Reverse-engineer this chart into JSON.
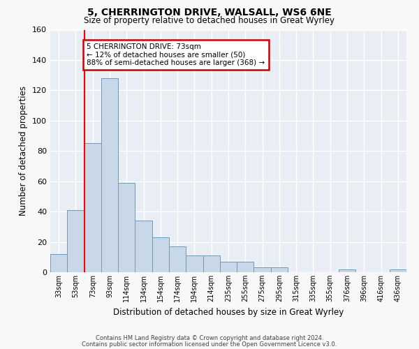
{
  "title1": "5, CHERRINGTON DRIVE, WALSALL, WS6 6NE",
  "title2": "Size of property relative to detached houses in Great Wyrley",
  "xlabel": "Distribution of detached houses by size in Great Wyrley",
  "ylabel": "Number of detached properties",
  "categories": [
    "33sqm",
    "53sqm",
    "73sqm",
    "93sqm",
    "114sqm",
    "134sqm",
    "154sqm",
    "174sqm",
    "194sqm",
    "214sqm",
    "235sqm",
    "255sqm",
    "275sqm",
    "295sqm",
    "315sqm",
    "335sqm",
    "355sqm",
    "376sqm",
    "396sqm",
    "416sqm",
    "436sqm"
  ],
  "values": [
    12,
    41,
    85,
    128,
    59,
    34,
    23,
    17,
    11,
    11,
    7,
    7,
    3,
    3,
    0,
    0,
    0,
    2,
    0,
    0,
    2
  ],
  "bar_color": "#c8d8e8",
  "bar_edge_color": "#7098b8",
  "red_line_x": 2,
  "annotation_line1": "5 CHERRINGTON DRIVE: 73sqm",
  "annotation_line2": "← 12% of detached houses are smaller (50)",
  "annotation_line3": "88% of semi-detached houses are larger (368) →",
  "annotation_box_color": "#ffffff",
  "annotation_box_edge": "#cc0000",
  "ylim": [
    0,
    160
  ],
  "yticks": [
    0,
    20,
    40,
    60,
    80,
    100,
    120,
    140,
    160
  ],
  "background_color": "#e8eef4",
  "grid_color": "#ffffff",
  "fig_facecolor": "#f8f8f8",
  "footer1": "Contains HM Land Registry data © Crown copyright and database right 2024.",
  "footer2": "Contains public sector information licensed under the Open Government Licence v3.0."
}
